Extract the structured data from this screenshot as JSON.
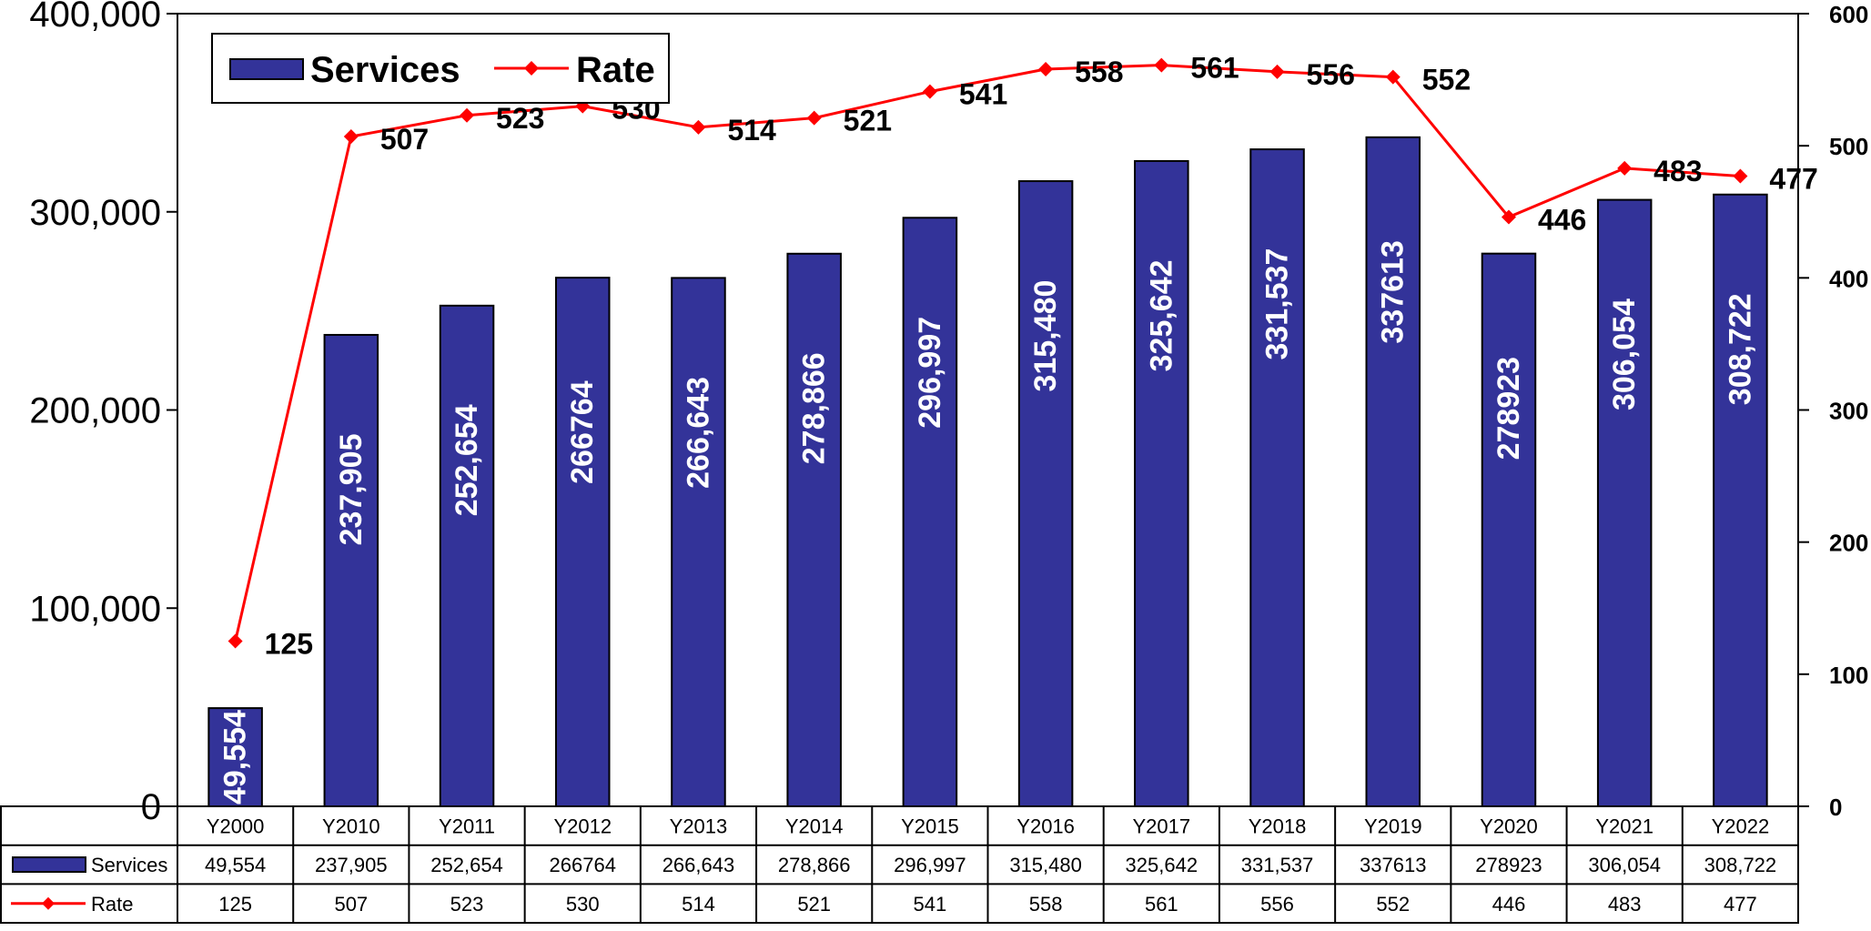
{
  "chart_data": {
    "type": "bar",
    "categories": [
      "Y2000",
      "Y2010",
      "Y2011",
      "Y2012",
      "Y2013",
      "Y2014",
      "Y2015",
      "Y2016",
      "Y2017",
      "Y2018",
      "Y2019",
      "Y2020",
      "Y2021",
      "Y2022"
    ],
    "series": [
      {
        "name": "Services",
        "type": "bar",
        "axis": "left",
        "color": "#333399",
        "values": [
          49554,
          237905,
          252654,
          266764,
          266643,
          278866,
          296997,
          315480,
          325642,
          331537,
          337613,
          278923,
          306054,
          308722
        ],
        "labels": [
          "49,554",
          "237,905",
          "252,654",
          "266764",
          "266,643",
          "278,866",
          "296,997",
          "315,480",
          "325,642",
          "331,537",
          "337613",
          "278923",
          "306,054",
          "308,722"
        ]
      },
      {
        "name": "Rate",
        "type": "line",
        "axis": "right",
        "color": "#ff0000",
        "values": [
          125,
          507,
          523,
          530,
          514,
          521,
          541,
          558,
          561,
          556,
          552,
          446,
          483,
          477
        ],
        "labels": [
          "125",
          "507",
          "523",
          "530",
          "514",
          "521",
          "541",
          "558",
          "561",
          "556",
          "552",
          "446",
          "483",
          "477"
        ]
      }
    ],
    "ylim": [
      0,
      400000
    ],
    "y_ticks": [
      "0",
      "100,000",
      "200,000",
      "300,000",
      "400,000"
    ],
    "y2lim": [
      0,
      600
    ],
    "y2_ticks": [
      "0",
      "100",
      "200",
      "300",
      "400",
      "500",
      "600"
    ],
    "legend": {
      "position": "top-left",
      "entries": [
        "Services",
        "Rate"
      ]
    },
    "data_table": true,
    "grid": false
  }
}
